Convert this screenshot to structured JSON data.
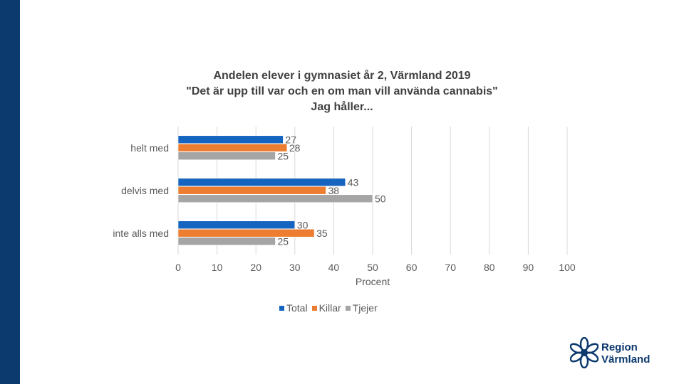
{
  "brand": {
    "name_line1": "Region",
    "name_line2": "Värmland",
    "sidebar_color": "#0d3a6e",
    "logo_icon": "star-flower-icon"
  },
  "chart_data": {
    "type": "bar",
    "orientation": "horizontal",
    "title": [
      "Andelen elever i gymnasiet år 2, Värmland 2019",
      "\"Det är upp till var och en om man vill använda cannabis\"",
      "Jag håller..."
    ],
    "categories": [
      "helt med",
      "delvis med",
      "inte alls med"
    ],
    "series": [
      {
        "name": "Total",
        "color": "#1565c0",
        "values": [
          27,
          43,
          30
        ]
      },
      {
        "name": "Killar",
        "color": "#ed7d31",
        "values": [
          28,
          38,
          35
        ]
      },
      {
        "name": "Tjejer",
        "color": "#a5a5a5",
        "values": [
          25,
          50,
          25
        ]
      }
    ],
    "xlabel": "Procent",
    "ylabel": "",
    "xlim": [
      0,
      100
    ],
    "xticks": [
      0,
      10,
      20,
      30,
      40,
      50,
      60,
      70,
      80,
      90,
      100
    ],
    "grid": true,
    "legend_position": "bottom",
    "data_labels": true
  }
}
